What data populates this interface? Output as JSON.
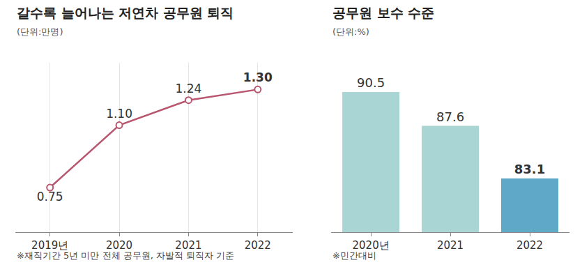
{
  "chart_data": [
    {
      "type": "line",
      "title": "갈수록 늘어나는 저연차 공무원 퇴직",
      "subtitle": "(단위:만명)",
      "note": "※재직기간 5년 미만 전체 공무원, 자발적 퇴직자 기준",
      "categories": [
        "2019년",
        "2020",
        "2021",
        "2022"
      ],
      "values": [
        0.75,
        1.1,
        1.24,
        1.3
      ],
      "value_labels": [
        "0.75",
        "1.10",
        "1.24",
        "1.30"
      ],
      "color": "#b8566f",
      "marker": "circle",
      "data_labels": true,
      "grid": true,
      "tick_labels": "x",
      "ylim": [
        0.5,
        1.45
      ]
    },
    {
      "type": "bar",
      "title": "공무원 보수 수준",
      "subtitle": "(단위:%)",
      "note": "※민간대비",
      "categories": [
        "2020년",
        "2021",
        "2022"
      ],
      "values": [
        90.5,
        87.6,
        83.1
      ],
      "colors": [
        "#a9d5d4",
        "#a9d5d4",
        "#5fa8c8"
      ],
      "data_labels": true,
      "grid": false,
      "tick_labels": "x",
      "ylim": [
        78.5,
        93
      ]
    }
  ]
}
